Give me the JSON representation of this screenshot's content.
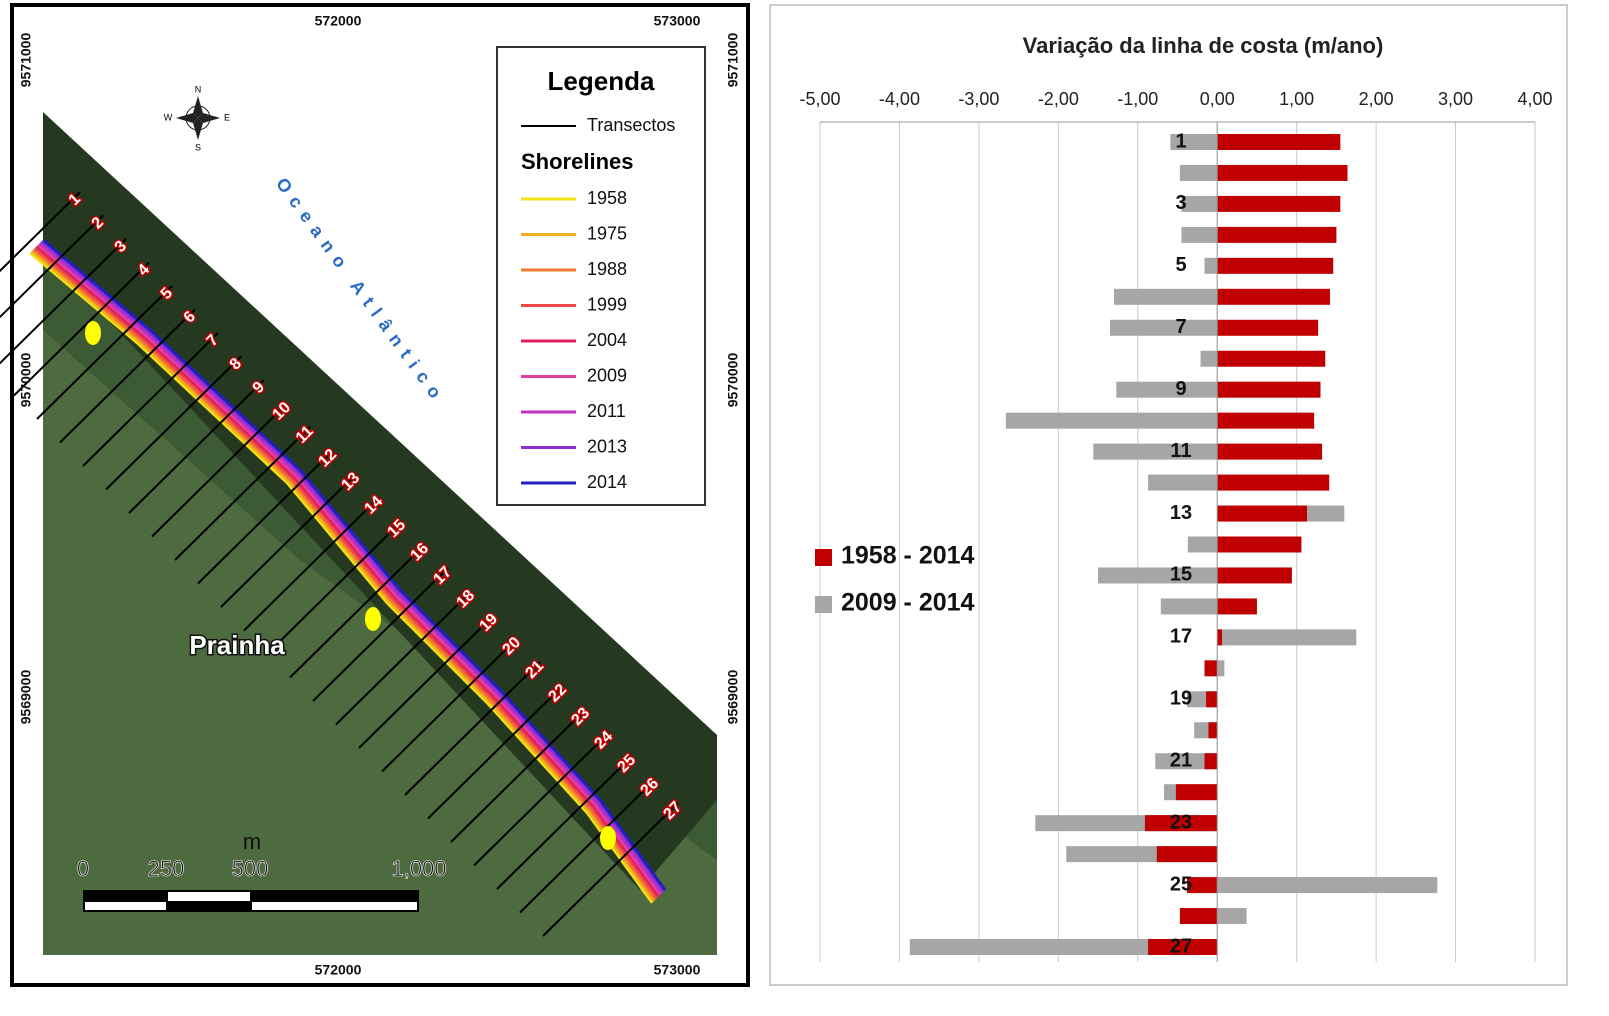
{
  "map": {
    "coords_top": [
      "572000",
      "573000"
    ],
    "coords_bottom": [
      "572000",
      "573000"
    ],
    "coords_left": [
      "9571000",
      "9570000",
      "9569000"
    ],
    "coords_right": [
      "9571000",
      "9570000",
      "9569000"
    ],
    "compass": {
      "n": "N",
      "s": "S",
      "e": "E",
      "w": "W"
    },
    "ocean": "Oceano Atlântico",
    "place": "Prainha",
    "legend": {
      "title": "Legenda",
      "transects": "Transectos",
      "shorelines_title": "Shorelines",
      "shorelines": [
        {
          "label": "1958",
          "color": "#f5e010"
        },
        {
          "label": "1975",
          "color": "#f0b020"
        },
        {
          "label": "1988",
          "color": "#f07a30"
        },
        {
          "label": "1999",
          "color": "#f04848"
        },
        {
          "label": "2004",
          "color": "#e0205a"
        },
        {
          "label": "2009",
          "color": "#e040a0"
        },
        {
          "label": "2011",
          "color": "#c030c8"
        },
        {
          "label": "2013",
          "color": "#8a30d0"
        },
        {
          "label": "2014",
          "color": "#2020c0"
        }
      ]
    },
    "transects": [
      "1",
      "2",
      "3",
      "4",
      "5",
      "6",
      "7",
      "8",
      "9",
      "10",
      "11",
      "12",
      "13",
      "14",
      "15",
      "16",
      "17",
      "18",
      "19",
      "20",
      "21",
      "22",
      "23",
      "24",
      "25",
      "26",
      "27"
    ],
    "scale": {
      "unit": "m",
      "labels": [
        "0",
        "250",
        "500",
        "1,000"
      ]
    }
  },
  "chart_data": {
    "type": "bar",
    "orientation": "horizontal",
    "title": "Variação  da linha de costa (m/ano)",
    "categories": [
      "1",
      null,
      "3",
      null,
      "5",
      null,
      "7",
      null,
      "9",
      null,
      "11",
      null,
      "13",
      null,
      "15",
      null,
      "17",
      null,
      "19",
      null,
      "21",
      null,
      "23",
      null,
      "25",
      null,
      "27"
    ],
    "series": [
      {
        "name": "2009 - 2014",
        "color": "#a6a6a6",
        "values": [
          -0.59,
          -0.47,
          -0.45,
          -0.45,
          -0.16,
          -1.3,
          -1.35,
          -0.21,
          -1.27,
          -2.66,
          -1.56,
          -0.87,
          1.6,
          -0.37,
          -1.5,
          -0.71,
          1.75,
          0.09,
          -0.38,
          -0.29,
          -0.78,
          -0.67,
          -2.29,
          -1.9,
          2.77,
          0.37,
          -3.87
        ]
      },
      {
        "name": "1958 - 2014",
        "color": "#c00000",
        "values": [
          1.55,
          1.64,
          1.55,
          1.5,
          1.46,
          1.42,
          1.27,
          1.36,
          1.3,
          1.22,
          1.32,
          1.41,
          1.13,
          1.06,
          0.94,
          0.5,
          0.06,
          -0.16,
          -0.14,
          -0.11,
          -0.16,
          -0.52,
          -0.91,
          -0.76,
          -0.38,
          -0.47,
          -0.87
        ]
      }
    ],
    "xlim": [
      -5,
      4
    ],
    "xticks": [
      {
        "value": -5,
        "label": "-5,00"
      },
      {
        "value": -4,
        "label": "-4,00"
      },
      {
        "value": -3,
        "label": "-3,00"
      },
      {
        "value": -2,
        "label": "-2,00"
      },
      {
        "value": -1,
        "label": "-1,00"
      },
      {
        "value": 0,
        "label": "0,00"
      },
      {
        "value": 1,
        "label": "1,00"
      },
      {
        "value": 2,
        "label": "2,00"
      },
      {
        "value": 3,
        "label": "3,00"
      },
      {
        "value": 4,
        "label": "4,00"
      }
    ],
    "grid": true,
    "legend_position": "left"
  }
}
